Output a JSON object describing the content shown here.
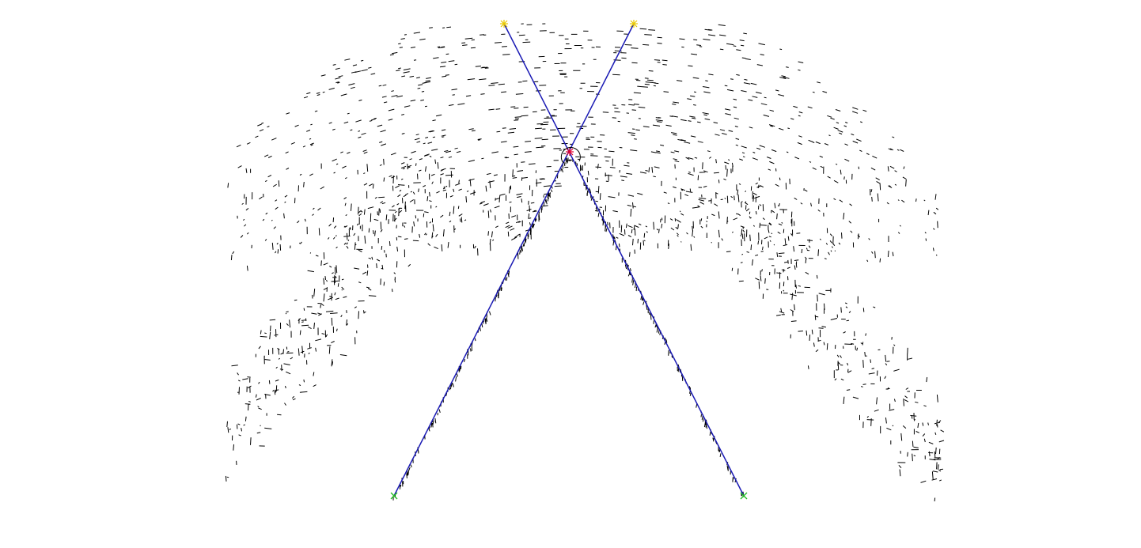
{
  "colors": {
    "background": "#ffffff",
    "edge_points": "#000000",
    "fitted_lines": "#1a1ab4",
    "intersection_marker": "#e00030",
    "top_endpoint_marker": "#e8c800",
    "bottom_endpoint_marker": "#22c022",
    "circle": "#000000"
  },
  "markers": {
    "intersection": "red-star-icon",
    "top_endpoints": "yellow-star-icon",
    "bottom_endpoints": "green-x-icon"
  }
}
